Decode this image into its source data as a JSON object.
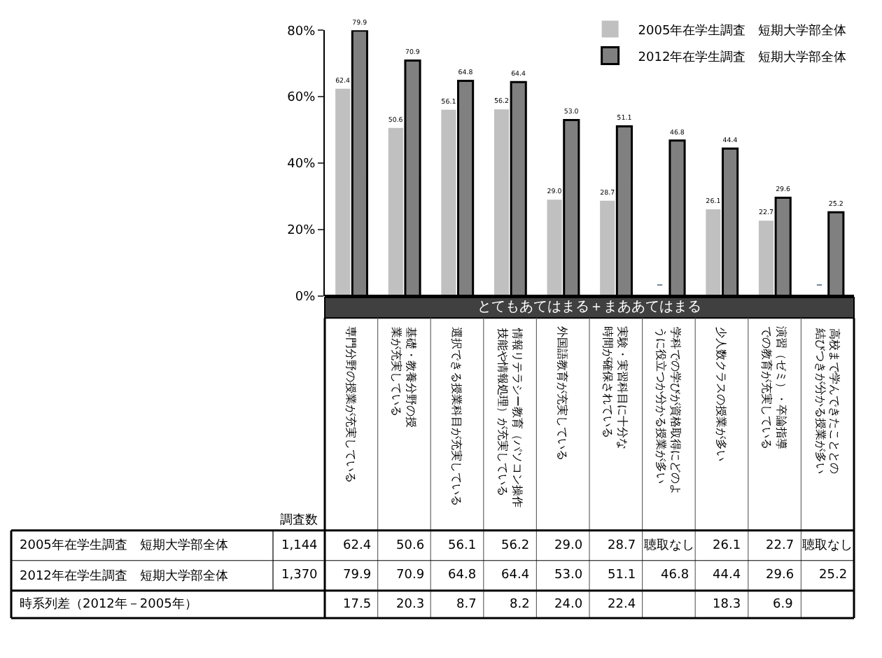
{
  "chart_data": {
    "type": "bar",
    "categories": [
      "専門分野の授業が充実している",
      "基礎・教養分野の授業が充実している",
      "選択できる授業科目が充実している",
      "情報リテラシー教育（パソコン操作技能や情報処理）が充実している",
      "外国語教育が充実している",
      "実験・実習科目に十分な時間が確保されている",
      "学科での学びが資格取得にどのように役立つか分かる授業が多い",
      "少人数クラスの授業が多い",
      "演習（ゼミ）・卒論指導での教育が充実している",
      "高校まで学んできたこととの結びつきが分かる授業が多い"
    ],
    "series": [
      {
        "name": "2005年在学生調査　短期大学部全体",
        "color": "#c0c0c0",
        "values": [
          62.4,
          50.6,
          56.1,
          56.2,
          29.0,
          28.7,
          null,
          26.1,
          22.7,
          null
        ],
        "value_labels": [
          "62.4",
          "50.6",
          "56.1",
          "56.2",
          "29.0",
          "28.7",
          "–",
          "26.1",
          "22.7",
          "–"
        ]
      },
      {
        "name": "2012年在学生調査　短期大学部全体",
        "color": "#808080",
        "values": [
          79.9,
          70.9,
          64.8,
          64.4,
          53.0,
          51.1,
          46.8,
          44.4,
          29.6,
          25.2
        ],
        "value_labels": [
          "79.9",
          "70.9",
          "64.8",
          "64.4",
          "53.0",
          "51.1",
          "46.8",
          "44.4",
          "29.6",
          "25.2"
        ]
      }
    ],
    "ylim": [
      0,
      80
    ],
    "yticks": [
      {
        "value": 0,
        "label": "0%"
      },
      {
        "value": 20,
        "label": "20%"
      },
      {
        "value": 40,
        "label": "40%"
      },
      {
        "value": 60,
        "label": "60%"
      },
      {
        "value": 80,
        "label": "80%"
      }
    ],
    "legend": "top right",
    "annotations": [
      "とてもあてはまる＋まああてはまる",
      "調査数",
      "1,144",
      "1,370",
      "時系列差（2012年－2005年）",
      "聴取なし",
      "聴取なし",
      "17.5",
      "20.3",
      "8.7",
      "8.2",
      "24.0",
      "22.4",
      "18.3",
      "6.9"
    ]
  }
}
